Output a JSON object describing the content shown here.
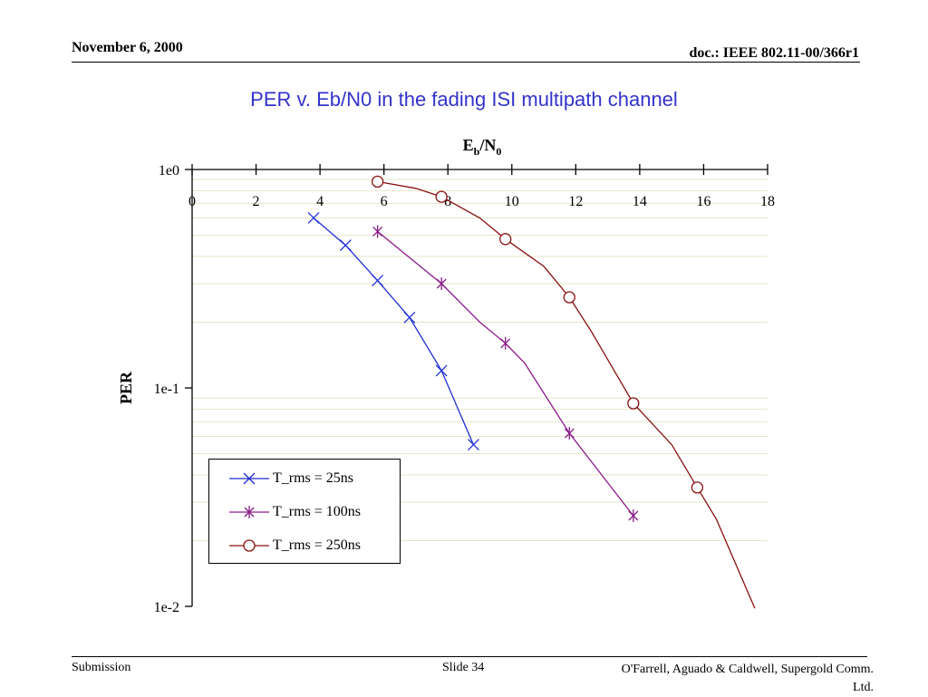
{
  "header": {
    "date": "November 6, 2000",
    "doc_id": "doc.: IEEE 802.11-00/366r1"
  },
  "slide_title": "PER v. Eb/N0 in the fading ISI multipath channel",
  "colors": {
    "title": "#3333cc",
    "series_25ns": "#1f2fd6",
    "series_100ns": "#8b1a8b",
    "series_250ns": "#8b1010",
    "grid": "#e6e6c8"
  },
  "chart_data": {
    "type": "line",
    "xlabel_main": "E",
    "xlabel_sub1": "b",
    "xlabel_mid": "/N",
    "xlabel_sub2": "0",
    "ylabel": "PER",
    "x_axis_position": "top",
    "xlim": [
      0,
      18
    ],
    "ylim": [
      0.01,
      1
    ],
    "y_scale": "log",
    "x_ticks": [
      0,
      2,
      4,
      6,
      8,
      10,
      12,
      14,
      16,
      18
    ],
    "x_tick_labels": [
      "0",
      "2",
      "4",
      "6",
      "8",
      "10",
      "12",
      "14",
      "16",
      "18"
    ],
    "y_ticks": [
      1,
      0.1,
      0.01
    ],
    "y_tick_labels": [
      "1e0",
      "1e-1",
      "1e-2"
    ],
    "grid": "horizontal minor",
    "legend_position": "bottom-left",
    "series": [
      {
        "name": "T_rms = 25ns",
        "color": "#1f2fd6",
        "marker": "x",
        "x": [
          3.8,
          4.8,
          5.8,
          6.8,
          7.8,
          8.8
        ],
        "y": [
          0.6,
          0.45,
          0.31,
          0.21,
          0.12,
          0.055
        ],
        "marker_x": [
          3.8,
          4.8,
          5.8,
          6.8,
          7.8,
          8.8
        ],
        "marker_y": [
          0.6,
          0.45,
          0.31,
          0.21,
          0.12,
          0.055
        ]
      },
      {
        "name": "T_rms = 100ns",
        "color": "#8b1a8b",
        "marker": "asterisk",
        "x": [
          5.8,
          7.8,
          9.0,
          9.8,
          10.4,
          11.8,
          13.8
        ],
        "y": [
          0.52,
          0.3,
          0.2,
          0.16,
          0.13,
          0.062,
          0.026
        ],
        "marker_x": [
          5.8,
          7.8,
          9.8,
          11.8,
          13.8
        ],
        "marker_y": [
          0.52,
          0.3,
          0.16,
          0.062,
          0.026
        ]
      },
      {
        "name": "T_rms = 250ns",
        "color": "#8b1010",
        "marker": "circle",
        "x": [
          5.8,
          7.0,
          7.8,
          9.0,
          9.8,
          11.0,
          11.8,
          12.5,
          13.2,
          13.8,
          15.0,
          15.8,
          16.4,
          17.6
        ],
        "y": [
          0.88,
          0.82,
          0.75,
          0.6,
          0.48,
          0.36,
          0.26,
          0.18,
          0.12,
          0.085,
          0.055,
          0.035,
          0.025,
          0.0098
        ],
        "marker_x": [
          5.8,
          7.8,
          9.8,
          11.8,
          13.8,
          15.8
        ],
        "marker_y": [
          0.88,
          0.75,
          0.48,
          0.26,
          0.085,
          0.035
        ]
      }
    ]
  },
  "footer": {
    "left": "Submission",
    "center": "Slide 34",
    "right_line1": "O'Farrell, Aguado & Caldwell, Supergold Comm.",
    "right_line2": "Ltd."
  }
}
